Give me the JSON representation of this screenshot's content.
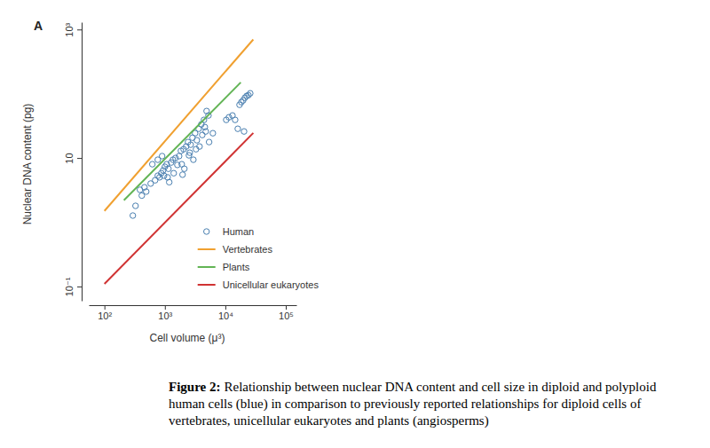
{
  "chart_data": {
    "type": "scatter",
    "panel_label": "A",
    "xlabel": "Cell volume (μ³)",
    "ylabel": "Nuclear DNA content (pg)",
    "log": true,
    "grid": false,
    "legend": "bottom-right",
    "xlim": [
      55,
      150000
    ],
    "ylim": [
      0.06,
      1300
    ],
    "xticks": [
      {
        "value": 100,
        "label": "10²"
      },
      {
        "value": 1000,
        "label": "10³"
      },
      {
        "value": 10000,
        "label": "10⁴"
      },
      {
        "value": 100000,
        "label": "10⁵"
      }
    ],
    "yticks": [
      {
        "value": 0.1,
        "label": "10⁻¹"
      },
      10,
      {
        "value": 1000,
        "label": "10³"
      }
    ],
    "series": [
      {
        "name": "Human",
        "type": "scatter",
        "marker": "circle",
        "color": "#4a7fb0",
        "x": [
          327,
          387,
          415,
          459,
          491,
          582,
          689,
          763,
          816,
          873,
          935,
          967,
          1000,
          1070,
          1110,
          1145,
          1180,
          1270,
          1360,
          1400,
          1500,
          1610,
          1720,
          1840,
          1900,
          2040,
          2100,
          2250,
          2410,
          2500,
          2670,
          2860,
          2960,
          3160,
          3380,
          3620,
          3740,
          4010,
          4150,
          4430,
          4740,
          5260,
          5390,
          6220,
          10350,
          11460,
          13120,
          14520,
          16070,
          17180,
          18400,
          19700,
          21090,
          22560,
          24120,
          25800,
          20400,
          763,
          900,
          620,
          295,
          1960,
          2580,
          3270,
          4580,
          4900
        ],
        "values": [
          1.8,
          3.2,
          2.6,
          3.5,
          3.0,
          4.0,
          4.5,
          5.3,
          5.0,
          5.8,
          6.4,
          5.3,
          7.3,
          8.0,
          5.0,
          6.8,
          4.2,
          8.5,
          9.4,
          5.8,
          10,
          7.8,
          10.7,
          12.9,
          8.0,
          13.7,
          6.8,
          15.1,
          17.7,
          11.0,
          16.1,
          20.7,
          9.4,
          24.3,
          18.9,
          28.5,
          15.1,
          33.4,
          22.8,
          39.2,
          25.9,
          45.9,
          17.7,
          24.3,
          39.2,
          43,
          45.9,
          39.2,
          28.5,
          67.3,
          74,
          78.9,
          86.7,
          92.5,
          95,
          101.6,
          25.9,
          9.4,
          10.7,
          8.0,
          1.27,
          5.5,
          12.1,
          13.7,
          30.3,
          53.8
        ]
      },
      {
        "name": "Vertebrates",
        "type": "line",
        "line_style": "solid",
        "color": "#f0a030",
        "x": [
          100,
          29000
        ],
        "values": [
          1.5,
          700
        ]
      },
      {
        "name": "Plants",
        "type": "line",
        "line_style": "solid",
        "color": "#62b455",
        "x": [
          210,
          18000
        ],
        "values": [
          2.2,
          150
        ]
      },
      {
        "name": "Unicellular eukaryotes",
        "type": "line",
        "line_style": "solid",
        "color": "#d03333",
        "x": [
          100,
          29000
        ],
        "values": [
          0.11,
          24.5
        ]
      }
    ],
    "caption": {
      "label": "Figure 2:",
      "lines": [
        "Relationship between nuclear DNA content and cell size in diploid and polyploid",
        "human cells (blue) in comparison to previously reported relationships for diploid cells of",
        "vertebrates, unicellular eukaryotes and plants (angiosperms)"
      ]
    }
  }
}
